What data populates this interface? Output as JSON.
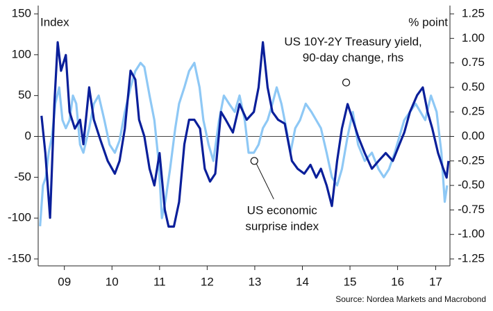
{
  "chart_data": {
    "type": "line",
    "y_label": "Index",
    "y2_label": "% point",
    "source": "Source: Nordea Markets and Macrobond",
    "annotations": [
      {
        "lines": [
          "US 10Y-2Y Treasury yield,",
          "90-day change, rhs"
        ],
        "x": 2015.42,
        "y": 0.55,
        "axis": "y2"
      },
      {
        "lines": [
          "US economic",
          "surprise index"
        ],
        "x": 2013.49,
        "y": -30,
        "axis": "y"
      }
    ],
    "xlim": [
      2008.95,
      2017.6
    ],
    "xticks": [
      {
        "value": 2009.5,
        "label": "09"
      },
      {
        "value": 2010.5,
        "label": "10"
      },
      {
        "value": 2011.5,
        "label": "11"
      },
      {
        "value": 2012.5,
        "label": "12"
      },
      {
        "value": 2013.5,
        "label": "13"
      },
      {
        "value": 2014.5,
        "label": "14"
      },
      {
        "value": 2015.5,
        "label": "15"
      },
      {
        "value": 2016.5,
        "label": "16"
      },
      {
        "value": 2017.3,
        "label": "17"
      }
    ],
    "ylim": [
      -150,
      150
    ],
    "yticks": [
      -150,
      -100,
      -50,
      0,
      50,
      100,
      150
    ],
    "y2lim": [
      -1.25,
      1.25
    ],
    "y2ticks": [
      -1.25,
      {
        "value": -1,
        "label": "-1.00"
      },
      -0.75,
      {
        "value": -0.5,
        "label": "-0.50"
      },
      -0.25,
      {
        "value": 0,
        "label": "0.00"
      },
      0.25,
      {
        "value": 0.5,
        "label": "0.50"
      },
      0.75,
      {
        "value": 1,
        "label": "1.00"
      },
      1.25
    ],
    "series": [
      {
        "name": "US economic surprise index",
        "color": "#8ec8f5",
        "axis": "y",
        "x": [
          2008.99,
          2009.05,
          2009.11,
          2009.17,
          2009.24,
          2009.31,
          2009.39,
          2009.46,
          2009.53,
          2009.61,
          2009.68,
          2009.75,
          2009.83,
          2009.9,
          2010.02,
          2010.12,
          2010.22,
          2010.34,
          2010.45,
          2010.56,
          2010.66,
          2010.77,
          2010.89,
          2010.99,
          2011.1,
          2011.18,
          2011.29,
          2011.39,
          2011.48,
          2011.55,
          2011.62,
          2011.72,
          2011.83,
          2011.91,
          2012.02,
          2012.12,
          2012.23,
          2012.34,
          2012.42,
          2012.53,
          2012.63,
          2012.75,
          2012.85,
          2012.96,
          2013.08,
          2013.18,
          2013.29,
          2013.37,
          2013.48,
          2013.58,
          2013.67,
          2013.77,
          2013.87,
          2013.96,
          2014.06,
          2014.16,
          2014.25,
          2014.35,
          2014.45,
          2014.57,
          2014.69,
          2014.79,
          2014.89,
          2015.01,
          2015.12,
          2015.23,
          2015.33,
          2015.45,
          2015.56,
          2015.67,
          2015.81,
          2015.96,
          2016.1,
          2016.21,
          2016.32,
          2016.44,
          2016.54,
          2016.64,
          2016.76,
          2016.88,
          2016.98,
          2017.08,
          2017.2,
          2017.32,
          2017.42,
          2017.49,
          2017.54
        ],
        "values": [
          -110,
          -60,
          -50,
          -20,
          0,
          40,
          60,
          20,
          10,
          20,
          50,
          40,
          -10,
          -20,
          10,
          40,
          50,
          20,
          -10,
          -20,
          -5,
          30,
          60,
          80,
          90,
          85,
          50,
          20,
          -30,
          -100,
          -80,
          -40,
          10,
          40,
          60,
          80,
          90,
          60,
          20,
          -10,
          -30,
          20,
          50,
          40,
          30,
          50,
          20,
          -20,
          -20,
          -10,
          10,
          20,
          40,
          60,
          40,
          10,
          -20,
          10,
          20,
          40,
          30,
          20,
          10,
          -20,
          -50,
          -60,
          -40,
          0,
          30,
          -10,
          -30,
          -20,
          -40,
          -50,
          -40,
          -20,
          0,
          20,
          30,
          40,
          30,
          20,
          50,
          30,
          -20,
          -80,
          -60
        ]
      },
      {
        "name": "US 10Y-2Y Treasury yield, 90-day change",
        "color": "#0a1f9a",
        "axis": "y2",
        "x": [
          2009.02,
          2009.1,
          2009.2,
          2009.29,
          2009.36,
          2009.43,
          2009.53,
          2009.61,
          2009.72,
          2009.83,
          2009.9,
          2010.02,
          2010.12,
          2010.26,
          2010.41,
          2010.56,
          2010.66,
          2010.77,
          2010.89,
          2010.99,
          2011.07,
          2011.18,
          2011.29,
          2011.39,
          2011.5,
          2011.61,
          2011.69,
          2011.8,
          2011.91,
          2012.02,
          2012.12,
          2012.23,
          2012.35,
          2012.45,
          2012.56,
          2012.67,
          2012.79,
          2012.89,
          2013.04,
          2013.18,
          2013.33,
          2013.48,
          2013.58,
          2013.67,
          2013.77,
          2013.87,
          2013.99,
          2014.13,
          2014.28,
          2014.4,
          2014.54,
          2014.67,
          2014.79,
          2014.89,
          2015.01,
          2015.12,
          2015.23,
          2015.33,
          2015.45,
          2015.56,
          2015.67,
          2015.81,
          2015.96,
          2016.1,
          2016.25,
          2016.4,
          2016.54,
          2016.64,
          2016.76,
          2016.91,
          2017.03,
          2017.13,
          2017.23,
          2017.35,
          2017.46,
          2017.53,
          2017.57
        ],
        "values": [
          0.21,
          -0.17,
          -0.83,
          0.33,
          0.96,
          0.67,
          0.83,
          0.25,
          0.08,
          0.17,
          -0.08,
          0.5,
          0.17,
          -0.04,
          -0.25,
          -0.38,
          -0.25,
          0.08,
          0.67,
          0.58,
          0.17,
          0,
          -0.33,
          -0.5,
          -0.17,
          -0.75,
          -0.92,
          -0.92,
          -0.67,
          -0.08,
          0.17,
          0.17,
          0.08,
          -0.33,
          -0.46,
          -0.38,
          0.25,
          0.17,
          0.04,
          0.33,
          0.17,
          0.25,
          0.5,
          0.96,
          0.5,
          0.25,
          0.17,
          0.13,
          -0.25,
          -0.33,
          -0.38,
          -0.29,
          -0.42,
          -0.33,
          -0.5,
          -0.71,
          -0.25,
          0.08,
          0.33,
          0.17,
          0,
          -0.17,
          -0.33,
          -0.25,
          -0.17,
          -0.25,
          -0.08,
          0.04,
          0.25,
          0.42,
          0.5,
          0.25,
          0.08,
          -0.17,
          -0.33,
          -0.42,
          -0.25
        ]
      }
    ]
  }
}
